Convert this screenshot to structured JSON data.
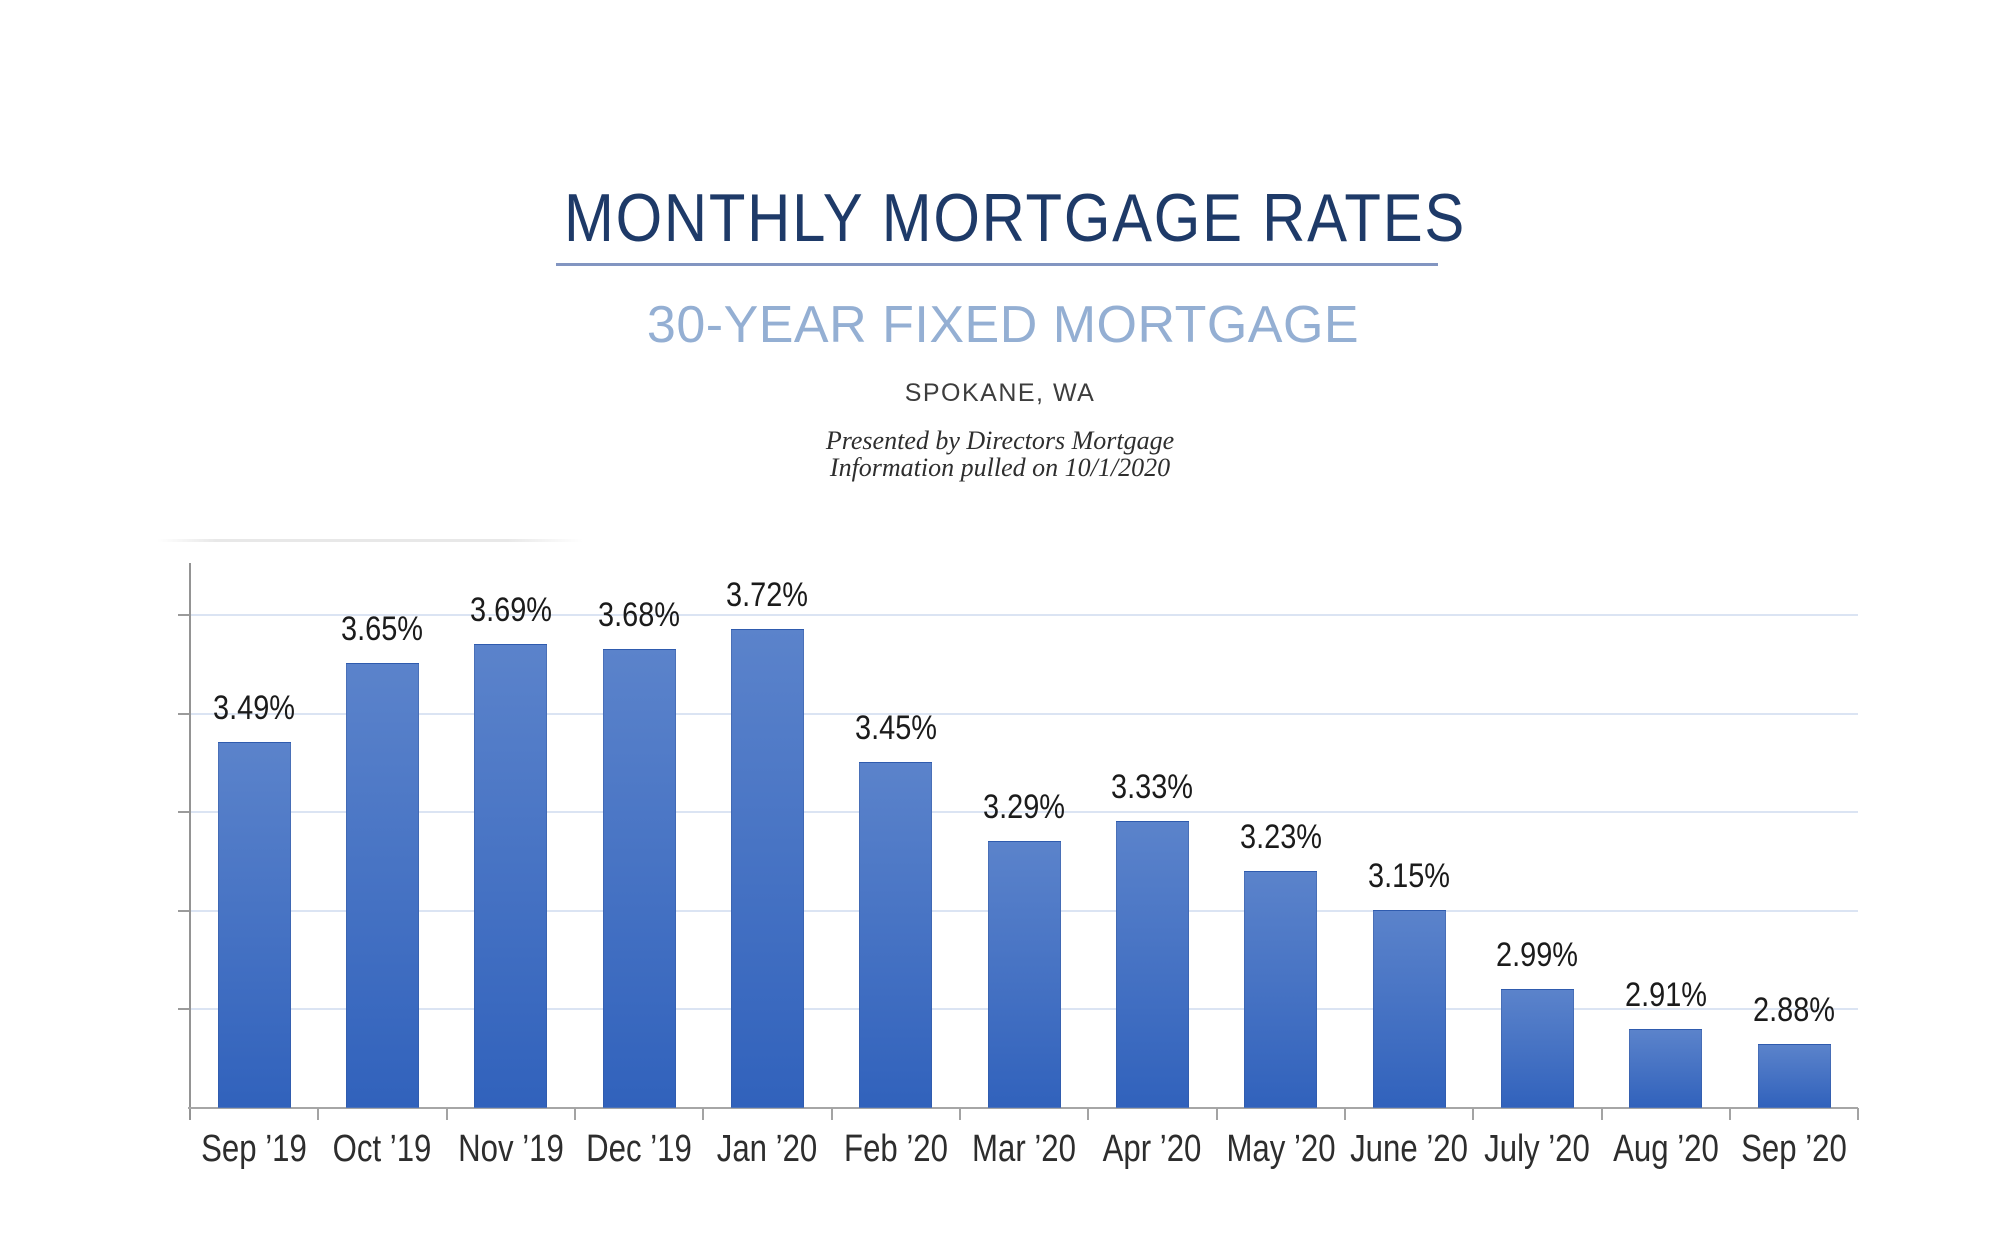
{
  "header": {
    "title": "MONTHLY MORTGAGE RATES",
    "subtitle": "30-YEAR FIXED MORTGAGE",
    "location": "SPOKANE, WA",
    "credit_line1": "Presented by Directors Mortgage",
    "credit_line2": "Information pulled on 10/1/2020"
  },
  "colors": {
    "title": "#1e3a68",
    "divider": "#8295c1",
    "subtitle": "#94afd3",
    "bar_gradient_top": "#5b83cb",
    "bar_gradient_bottom": "#3162bc",
    "gridline": "#dbe4f3",
    "axis": "#9b9b9b"
  },
  "chart_data": {
    "type": "bar",
    "title": "Monthly Mortgage Rates - 30-Year Fixed Mortgage, Spokane, WA",
    "categories": [
      "Sep ’19",
      "Oct ’19",
      "Nov ’19",
      "Dec ’19",
      "Jan ’20",
      "Feb ’20",
      "Mar ’20",
      "Apr ’20",
      "May ’20",
      "June ’20",
      "July ’20",
      "Aug ’20",
      "Sep ’20"
    ],
    "values": [
      3.49,
      3.65,
      3.69,
      3.68,
      3.72,
      3.45,
      3.29,
      3.33,
      3.23,
      3.15,
      2.99,
      2.91,
      2.88
    ],
    "labels": [
      "3.49%",
      "3.65%",
      "3.69%",
      "3.68%",
      "3.72%",
      "3.45%",
      "3.29%",
      "3.33%",
      "3.23%",
      "3.15%",
      "2.99%",
      "2.91%",
      "2.88%"
    ],
    "xlabel": "",
    "ylabel": "",
    "ylim": [
      2.7,
      3.8
    ],
    "gridlines": [
      2.9,
      3.1,
      3.3,
      3.5,
      3.7
    ],
    "bar_value_floor": 2.75,
    "grid": "on",
    "legend": "none"
  }
}
